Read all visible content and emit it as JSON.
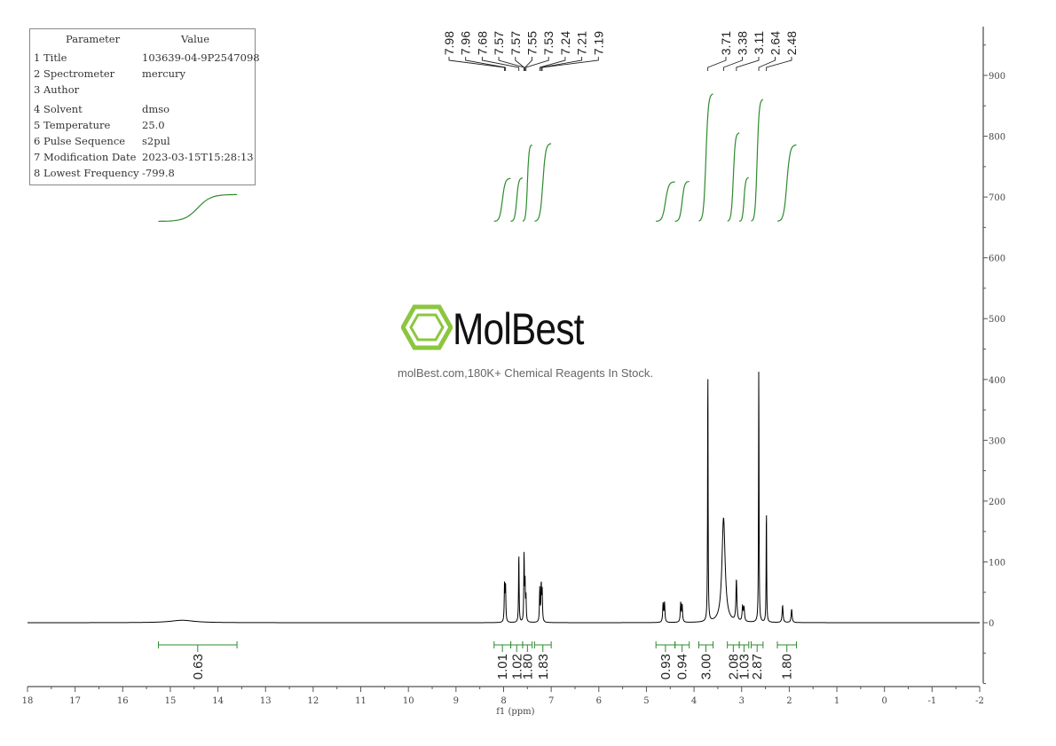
{
  "parameters": {
    "header": [
      "Parameter",
      "Value"
    ],
    "rows": [
      {
        "label": "1 Title",
        "value": "103639-04-9P2547098"
      },
      {
        "label": "2 Spectrometer",
        "value": "mercury"
      },
      {
        "label": "3 Author",
        "value": ""
      },
      {
        "label": "4 Solvent",
        "value": "dmso"
      },
      {
        "label": "5 Temperature",
        "value": "25.0"
      },
      {
        "label": "6 Pulse Sequence",
        "value": "s2pul"
      },
      {
        "label": "7 Modification Date",
        "value": "2023-03-15T15:28:13"
      },
      {
        "label": "8 Lowest Frequency",
        "value": "-799.8"
      }
    ]
  },
  "watermark": {
    "name": "MolBest",
    "tagline": "molBest.com,180K+ Chemical Reagents In Stock."
  },
  "colors": {
    "spectrum": "#000000",
    "integral": "#2e8b2e",
    "axis": "#555555"
  },
  "chart_data": {
    "type": "line",
    "xlabel": "f1 (ppm)",
    "xlim": [
      18,
      -2
    ],
    "x_ticks": [
      "18",
      "17",
      "16",
      "15",
      "14",
      "13",
      "12",
      "11",
      "10",
      "9",
      "8",
      "7",
      "6",
      "5",
      "4",
      "3",
      "2",
      "1",
      "0",
      "-1",
      "-2"
    ],
    "ylim": [
      -100,
      980
    ],
    "y_ticks": [
      "0",
      "100",
      "200",
      "300",
      "400",
      "500",
      "600",
      "700",
      "800",
      "900"
    ],
    "peak_labels": [
      {
        "group": "aromatic",
        "values": [
          "7.98",
          "7.96",
          "7.68",
          "7.57",
          "7.57",
          "7.55",
          "7.53",
          "7.24",
          "7.21",
          "7.19"
        ]
      },
      {
        "group": "aliphatic",
        "values": [
          "3.71",
          "3.38",
          "3.11",
          "2.64",
          "2.48"
        ]
      }
    ],
    "peaks": [
      {
        "ppm": 14.75,
        "height": 4,
        "width": 0.3
      },
      {
        "ppm": 7.98,
        "height": 62,
        "width": 0.008
      },
      {
        "ppm": 7.96,
        "height": 60,
        "width": 0.008
      },
      {
        "ppm": 7.68,
        "height": 113,
        "width": 0.007
      },
      {
        "ppm": 7.57,
        "height": 112,
        "width": 0.007
      },
      {
        "ppm": 7.55,
        "height": 65,
        "width": 0.007
      },
      {
        "ppm": 7.53,
        "height": 40,
        "width": 0.007
      },
      {
        "ppm": 7.24,
        "height": 55,
        "width": 0.008
      },
      {
        "ppm": 7.21,
        "height": 60,
        "width": 0.008
      },
      {
        "ppm": 7.19,
        "height": 50,
        "width": 0.008
      },
      {
        "ppm": 4.65,
        "height": 30,
        "width": 0.01
      },
      {
        "ppm": 4.62,
        "height": 32,
        "width": 0.01
      },
      {
        "ppm": 4.28,
        "height": 32,
        "width": 0.01
      },
      {
        "ppm": 4.25,
        "height": 28,
        "width": 0.01
      },
      {
        "ppm": 3.71,
        "height": 430,
        "width": 0.006
      },
      {
        "ppm": 3.38,
        "height": 172,
        "width": 0.04
      },
      {
        "ppm": 3.11,
        "height": 68,
        "width": 0.012
      },
      {
        "ppm": 2.98,
        "height": 24,
        "width": 0.012
      },
      {
        "ppm": 2.95,
        "height": 22,
        "width": 0.012
      },
      {
        "ppm": 2.64,
        "height": 428,
        "width": 0.006
      },
      {
        "ppm": 2.48,
        "height": 193,
        "width": 0.006
      },
      {
        "ppm": 2.14,
        "height": 28,
        "width": 0.012
      },
      {
        "ppm": 1.95,
        "height": 22,
        "width": 0.012
      }
    ],
    "integrals": [
      {
        "from": 15.25,
        "to": 13.6,
        "value": "0.63"
      },
      {
        "from": 8.2,
        "to": 7.85,
        "value": "1.01"
      },
      {
        "from": 7.85,
        "to": 7.6,
        "value": "1.02"
      },
      {
        "from": 7.6,
        "to": 7.4,
        "value": "1.80"
      },
      {
        "from": 7.35,
        "to": 7.0,
        "value": "1.83"
      },
      {
        "from": 4.8,
        "to": 4.4,
        "value": "0.93"
      },
      {
        "from": 4.4,
        "to": 4.1,
        "value": "0.94"
      },
      {
        "from": 3.9,
        "to": 3.6,
        "value": "3.00"
      },
      {
        "from": 3.3,
        "to": 3.05,
        "value": "2.08"
      },
      {
        "from": 3.05,
        "to": 2.85,
        "value": "1.03"
      },
      {
        "from": 2.8,
        "to": 2.55,
        "value": "2.87"
      },
      {
        "from": 2.25,
        "to": 1.85,
        "value": "1.80"
      }
    ]
  }
}
